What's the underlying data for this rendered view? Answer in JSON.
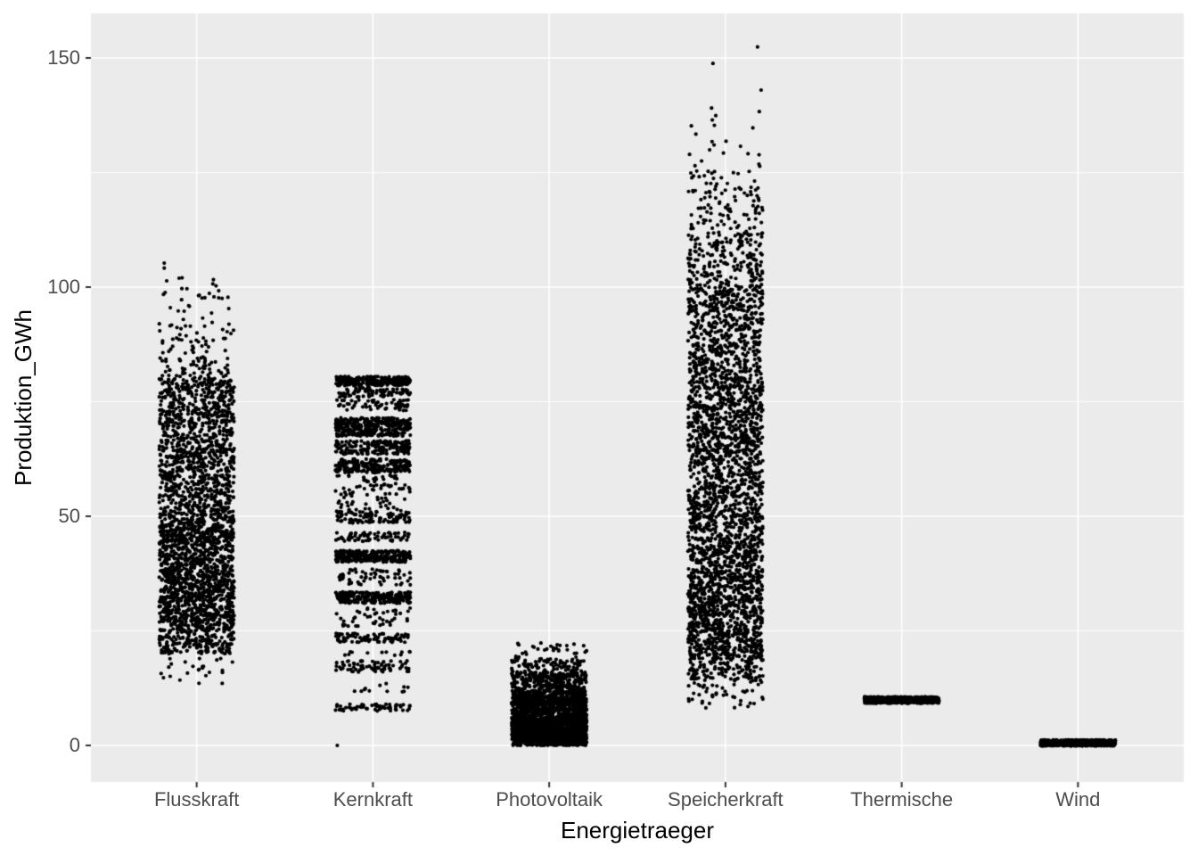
{
  "chart_data": {
    "type": "scatter",
    "subtype": "jittered-strip-plot",
    "title": "",
    "xlabel": "Energietraeger",
    "ylabel": "Produktion_GWh",
    "legend": "none",
    "grid": "major-and-minor-horizontal, major-vertical-at-categories",
    "categories": [
      "Flusskraft",
      "Kernkraft",
      "Photovoltaik",
      "Speicherkraft",
      "Thermische",
      "Wind"
    ],
    "y_axis": {
      "tick_labels": [
        "0",
        "50",
        "100",
        "150"
      ],
      "tick_values": [
        0,
        50,
        100,
        150
      ],
      "minor_tick_values": [
        25,
        75,
        125
      ],
      "ylim": [
        -8,
        160
      ],
      "unit": "GWh"
    },
    "series": [
      {
        "name": "Flusskraft",
        "seed": 11,
        "value_range": [
          13,
          106
        ],
        "description": "continuous dense cloud ~20-80 GWh, sparse tails to 13 and up to ~106",
        "segments": [
          [
            13,
            20,
            25
          ],
          [
            20,
            25,
            180
          ],
          [
            25,
            48,
            1250
          ],
          [
            48,
            65,
            620
          ],
          [
            65,
            80,
            500
          ],
          [
            80,
            85,
            60
          ],
          [
            85,
            92,
            45
          ],
          [
            92,
            100,
            25
          ],
          [
            100,
            106,
            8
          ]
        ],
        "extra_points": []
      },
      {
        "name": "Kernkraft",
        "seed": 22,
        "value_range": [
          0,
          80.5
        ],
        "description": "discrete horizontal bands (reactor output levels), max ~80, one point at 0",
        "segments": [
          [
            78.5,
            80.5,
            280
          ],
          [
            76,
            78,
            80
          ],
          [
            73,
            75.5,
            60
          ],
          [
            67.5,
            71.5,
            340
          ],
          [
            63.5,
            66.5,
            170
          ],
          [
            59.5,
            62.5,
            210
          ],
          [
            51,
            59,
            90
          ],
          [
            48.5,
            51,
            110
          ],
          [
            44.5,
            46.5,
            70
          ],
          [
            40,
            42.5,
            290
          ],
          [
            35,
            38.5,
            60
          ],
          [
            31,
            33.5,
            240
          ],
          [
            26,
            30,
            45
          ],
          [
            22.5,
            24.5,
            80
          ],
          [
            19.5,
            20.5,
            12
          ],
          [
            16,
            18.5,
            70
          ],
          [
            11.5,
            13.5,
            12
          ],
          [
            7.5,
            9,
            60
          ]
        ],
        "extra_points": [
          [
            -40,
            0
          ]
        ]
      },
      {
        "name": "Photovoltaik",
        "seed": 33,
        "value_range": [
          0,
          22.5
        ],
        "description": "very dense block 0-12, thinning to ~22",
        "segments": [
          [
            0,
            6,
            1500
          ],
          [
            6,
            12,
            850
          ],
          [
            12,
            16,
            280
          ],
          [
            16,
            19,
            90
          ],
          [
            19,
            22.5,
            30
          ]
        ],
        "extra_points": []
      },
      {
        "name": "Speicherkraft",
        "seed": 44,
        "value_range": [
          8,
          152.5
        ],
        "description": "tall dense cloud ~20-115, sparse tail down to 8 and outliers up to ~153",
        "segments": [
          [
            8,
            14,
            45
          ],
          [
            14,
            19,
            130
          ],
          [
            19,
            27,
            350
          ],
          [
            27,
            45,
            750
          ],
          [
            45,
            80,
            1200
          ],
          [
            80,
            100,
            560
          ],
          [
            100,
            112,
            210
          ],
          [
            112,
            122,
            85
          ],
          [
            122,
            130,
            28
          ],
          [
            130,
            136,
            8
          ],
          [
            136,
            140,
            3
          ]
        ],
        "extra_points": [
          [
            -14,
            148.8
          ],
          [
            36,
            152.4
          ],
          [
            40,
            143
          ],
          [
            38,
            138.3
          ]
        ]
      },
      {
        "name": "Thermische",
        "seed": 55,
        "value_range": [
          9.2,
          10.6
        ],
        "description": "flat solid bar at ~10 GWh",
        "segments": [
          [
            9.2,
            10.6,
            600
          ]
        ],
        "extra_points": []
      },
      {
        "name": "Wind",
        "seed": 66,
        "value_range": [
          -0.1,
          1.2
        ],
        "description": "flat solid bar at ~0.5 GWh, just above zero line",
        "segments": [
          [
            -0.1,
            1.2,
            550
          ]
        ],
        "extra_points": []
      }
    ]
  },
  "style": {
    "figure_bg": "#FFFFFF",
    "panel_bg": "#EBEBEB",
    "grid_color": "#FFFFFF",
    "point_color": "#000000",
    "axis_text_color": "#4D4D4D",
    "axis_title_color": "#000000",
    "tick_mark_color": "#333333"
  }
}
